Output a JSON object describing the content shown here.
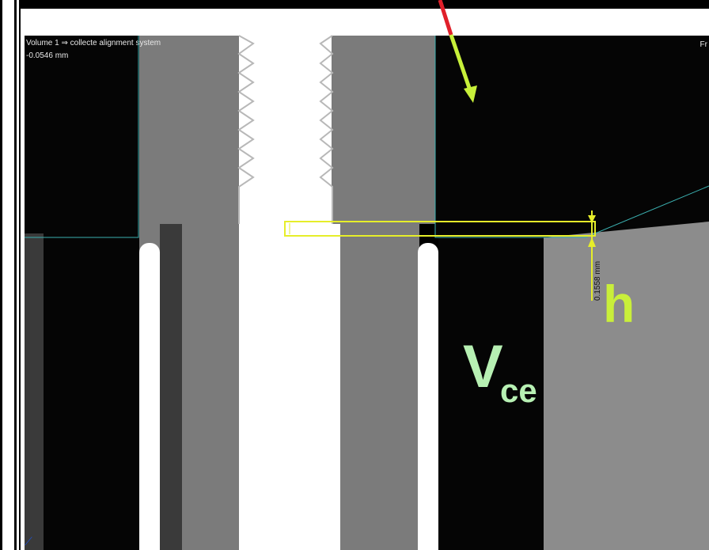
{
  "viewer": {
    "title": "Volume 1 ⇒ collecte alignment system",
    "value": "-0.0546 mm",
    "right_text": "Fr"
  },
  "measurement": {
    "value": "0.1558 mm"
  },
  "labels": {
    "h": "h",
    "v": "V",
    "ce": "ce"
  },
  "colors": {
    "measure_yellow": "#e6ee2a",
    "arrow_green": "#c7f03a",
    "arrow_red": "#e0202a",
    "label_green": "#b7f0b3"
  }
}
